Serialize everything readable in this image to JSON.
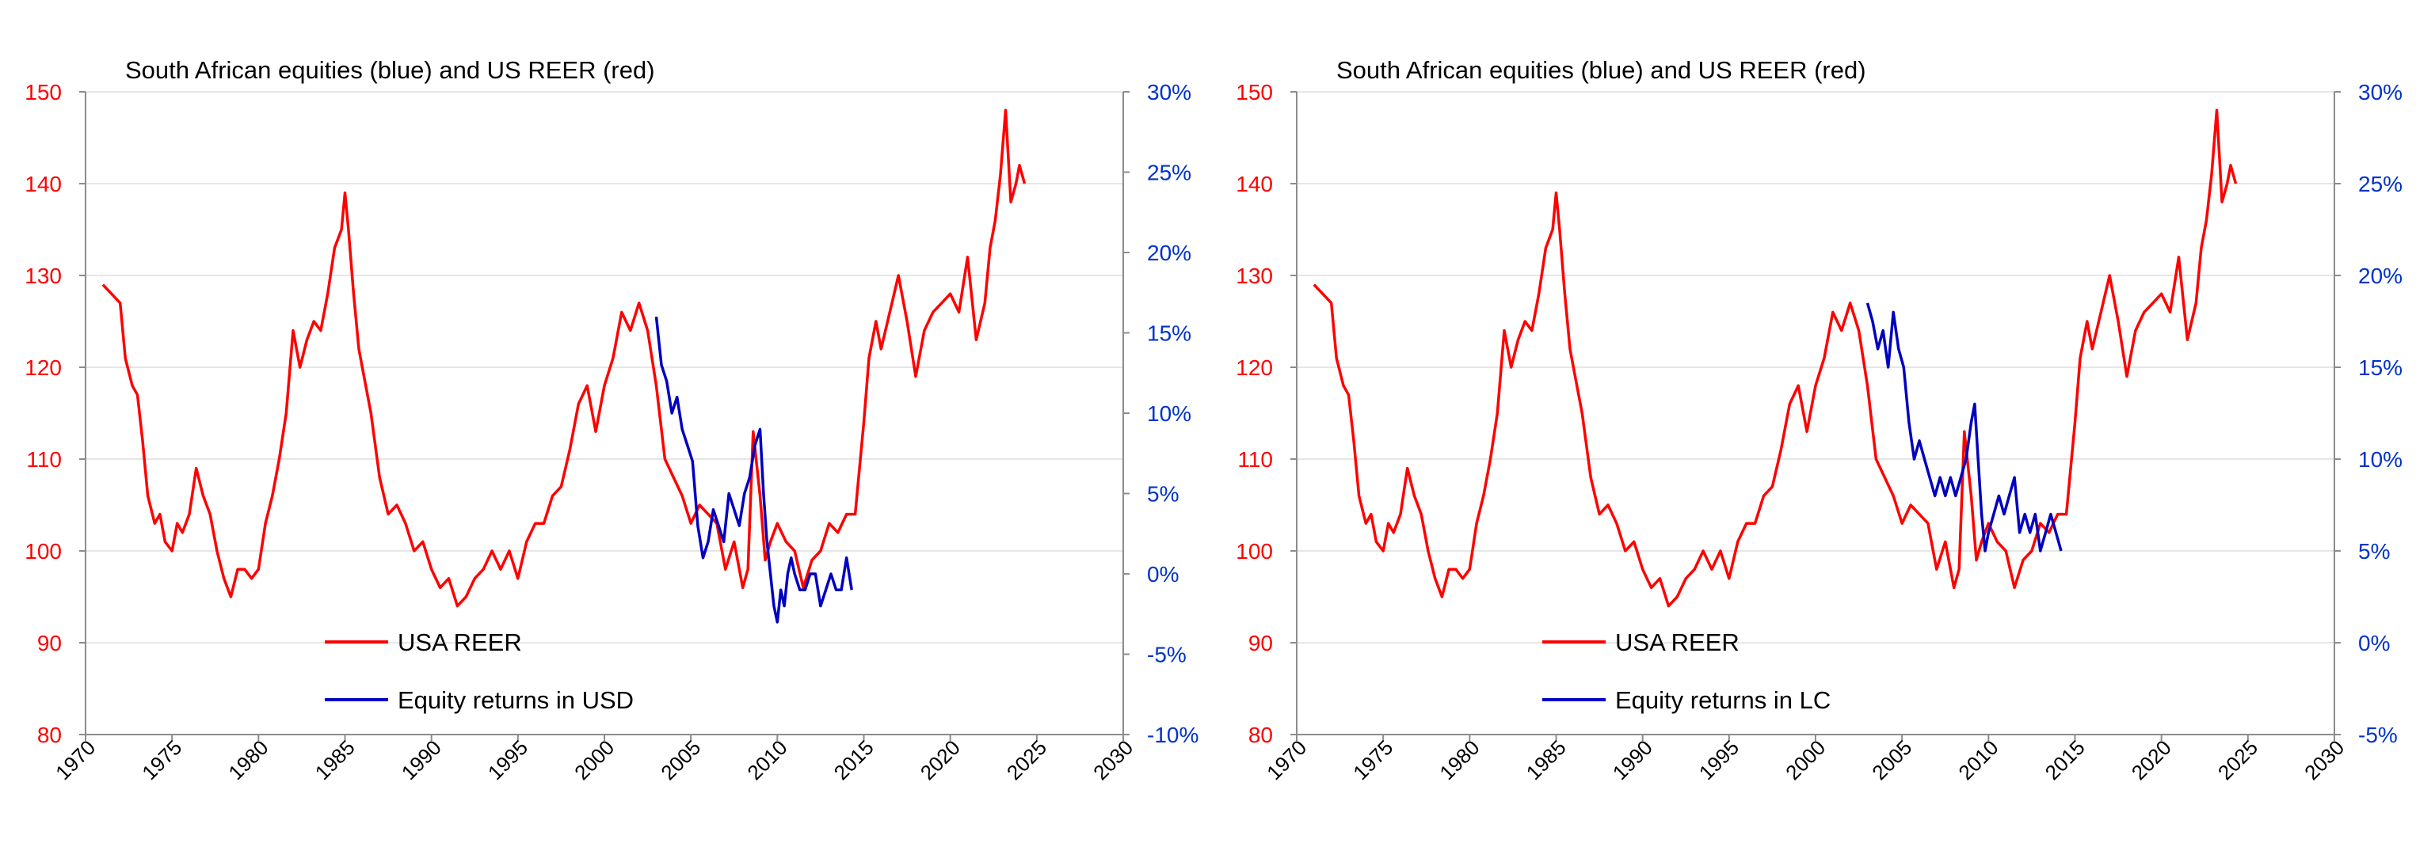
{
  "colors": {
    "reer": "#ff0000",
    "equity": "#0000c0",
    "axis": "#8c8c8c",
    "grid": "#e6e6e6",
    "text": "#000000",
    "left_tick": "#ff0000",
    "right_tick": "#0033cc"
  },
  "chart_data": [
    {
      "type": "line",
      "title": "South African equities (blue) and US REER (red)",
      "xlim": [
        1970,
        2030
      ],
      "x_ticks": [
        "1970",
        "1975",
        "1980",
        "1985",
        "1990",
        "1995",
        "2000",
        "2005",
        "2010",
        "2015",
        "2020",
        "2025",
        "2030"
      ],
      "ylim_left": [
        80,
        150
      ],
      "y_left_ticks": [
        "80",
        "90",
        "100",
        "110",
        "120",
        "130",
        "140",
        "150"
      ],
      "ylim_right": [
        -10,
        30
      ],
      "y_right_ticks": [
        "-10%",
        "-5%",
        "0%",
        "5%",
        "10%",
        "15%",
        "20%",
        "25%",
        "30%"
      ],
      "grid": true,
      "legend_position": "bottom-left",
      "series": [
        {
          "name": "USA REER",
          "axis": "left",
          "color": "#ff0000",
          "x": [
            1971.0,
            1971.5,
            1972.0,
            1972.3,
            1972.7,
            1973.0,
            1973.3,
            1973.6,
            1974.0,
            1974.3,
            1974.6,
            1975.0,
            1975.3,
            1975.6,
            1976.0,
            1976.4,
            1976.8,
            1977.2,
            1977.6,
            1978.0,
            1978.4,
            1978.8,
            1979.2,
            1979.6,
            1980.0,
            1980.4,
            1980.8,
            1981.2,
            1981.6,
            1982.0,
            1982.4,
            1982.8,
            1983.2,
            1983.6,
            1984.0,
            1984.4,
            1984.8,
            1985.0,
            1985.2,
            1985.5,
            1985.8,
            1986.1,
            1986.5,
            1987.0,
            1987.5,
            1988.0,
            1988.5,
            1989.0,
            1989.5,
            1990.0,
            1990.5,
            1991.0,
            1991.5,
            1992.0,
            1992.5,
            1993.0,
            1993.5,
            1994.0,
            1994.5,
            1995.0,
            1995.5,
            1996.0,
            1996.5,
            1997.0,
            1997.5,
            1998.0,
            1998.5,
            1999.0,
            1999.5,
            2000.0,
            2000.5,
            2001.0,
            2001.5,
            2002.0,
            2002.5,
            2003.0,
            2003.5,
            2004.0,
            2004.5,
            2005.0,
            2005.5,
            2006.0,
            2006.5,
            2007.0,
            2007.5,
            2008.0,
            2008.3,
            2008.6,
            2009.0,
            2009.3,
            2009.6,
            2010.0,
            2010.5,
            2011.0,
            2011.5,
            2012.0,
            2012.5,
            2013.0,
            2013.5,
            2014.0,
            2014.5,
            2015.0,
            2015.3,
            2015.7,
            2016.0,
            2016.5,
            2017.0,
            2017.5,
            2018.0,
            2018.5,
            2019.0,
            2019.5,
            2020.0,
            2020.5,
            2021.0,
            2021.5,
            2022.0,
            2022.3,
            2022.6,
            2022.9,
            2023.2,
            2023.5,
            2023.8,
            2024.0,
            2024.3
          ],
          "values": [
            129,
            128,
            127,
            121,
            118,
            117,
            112,
            106,
            103,
            104,
            101,
            100,
            103,
            102,
            104,
            109,
            106,
            104,
            100,
            97,
            95,
            98,
            98,
            97,
            98,
            103,
            106,
            110,
            115,
            124,
            120,
            123,
            125,
            124,
            128,
            133,
            135,
            139,
            135,
            128,
            122,
            119,
            115,
            108,
            104,
            105,
            103,
            100,
            101,
            98,
            96,
            97,
            94,
            95,
            97,
            98,
            100,
            98,
            100,
            97,
            101,
            103,
            103,
            106,
            107,
            111,
            116,
            118,
            113,
            118,
            121,
            126,
            124,
            127,
            124,
            118,
            110,
            108,
            106,
            103,
            105,
            104,
            103,
            98,
            101,
            96,
            98,
            113,
            106,
            99,
            101,
            103,
            101,
            100,
            96,
            99,
            100,
            103,
            102,
            104,
            104,
            114,
            121,
            125,
            122,
            126,
            130,
            125,
            119,
            124,
            126,
            127,
            128,
            126,
            132,
            123,
            127,
            133,
            136,
            141,
            148,
            138,
            140,
            142,
            140
          ]
        },
        {
          "name": "Equity returns in USD",
          "axis": "right",
          "color": "#0000c0",
          "x": [
            2003.0,
            2003.3,
            2003.6,
            2003.9,
            2004.2,
            2004.5,
            2004.8,
            2005.1,
            2005.4,
            2005.7,
            2006.0,
            2006.3,
            2006.6,
            2006.9,
            2007.2,
            2007.5,
            2007.8,
            2008.1,
            2008.4,
            2008.7,
            2009.0,
            2009.2,
            2009.4,
            2009.6,
            2009.8,
            2010.0,
            2010.2,
            2010.4,
            2010.6,
            2010.8,
            2011.0,
            2011.3,
            2011.6,
            2011.9,
            2012.2,
            2012.5,
            2012.8,
            2013.1,
            2013.4,
            2013.7,
            2014.0,
            2014.3
          ],
          "values": [
            16,
            13,
            12,
            10,
            11,
            9,
            8,
            7,
            3,
            1,
            2,
            4,
            3,
            2,
            5,
            4,
            3,
            5,
            6,
            8,
            9,
            5,
            2,
            0,
            -2,
            -3,
            -1,
            -2,
            0,
            1,
            0,
            -1,
            -1,
            0,
            0,
            -2,
            -1,
            0,
            -1,
            -1,
            1,
            -1
          ]
        }
      ]
    },
    {
      "type": "line",
      "title": "South African equities (blue) and US REER (red)",
      "xlim": [
        1970,
        2030
      ],
      "x_ticks": [
        "1970",
        "1975",
        "1980",
        "1985",
        "1990",
        "1995",
        "2000",
        "2005",
        "2010",
        "2015",
        "2020",
        "2025",
        "2030"
      ],
      "ylim_left": [
        80,
        150
      ],
      "y_left_ticks": [
        "80",
        "90",
        "100",
        "110",
        "120",
        "130",
        "140",
        "150"
      ],
      "ylim_right": [
        -5,
        30
      ],
      "y_right_ticks": [
        "-5%",
        "0%",
        "5%",
        "10%",
        "15%",
        "20%",
        "25%",
        "30%"
      ],
      "grid": true,
      "legend_position": "bottom-left",
      "series": [
        {
          "name": "USA REER",
          "axis": "left",
          "color": "#ff0000",
          "x": [
            1971.0,
            1971.5,
            1972.0,
            1972.3,
            1972.7,
            1973.0,
            1973.3,
            1973.6,
            1974.0,
            1974.3,
            1974.6,
            1975.0,
            1975.3,
            1975.6,
            1976.0,
            1976.4,
            1976.8,
            1977.2,
            1977.6,
            1978.0,
            1978.4,
            1978.8,
            1979.2,
            1979.6,
            1980.0,
            1980.4,
            1980.8,
            1981.2,
            1981.6,
            1982.0,
            1982.4,
            1982.8,
            1983.2,
            1983.6,
            1984.0,
            1984.4,
            1984.8,
            1985.0,
            1985.2,
            1985.5,
            1985.8,
            1986.1,
            1986.5,
            1987.0,
            1987.5,
            1988.0,
            1988.5,
            1989.0,
            1989.5,
            1990.0,
            1990.5,
            1991.0,
            1991.5,
            1992.0,
            1992.5,
            1993.0,
            1993.5,
            1994.0,
            1994.5,
            1995.0,
            1995.5,
            1996.0,
            1996.5,
            1997.0,
            1997.5,
            1998.0,
            1998.5,
            1999.0,
            1999.5,
            2000.0,
            2000.5,
            2001.0,
            2001.5,
            2002.0,
            2002.5,
            2003.0,
            2003.5,
            2004.0,
            2004.5,
            2005.0,
            2005.5,
            2006.0,
            2006.5,
            2007.0,
            2007.5,
            2008.0,
            2008.3,
            2008.6,
            2009.0,
            2009.3,
            2009.6,
            2010.0,
            2010.5,
            2011.0,
            2011.5,
            2012.0,
            2012.5,
            2013.0,
            2013.5,
            2014.0,
            2014.5,
            2015.0,
            2015.3,
            2015.7,
            2016.0,
            2016.5,
            2017.0,
            2017.5,
            2018.0,
            2018.5,
            2019.0,
            2019.5,
            2020.0,
            2020.5,
            2021.0,
            2021.5,
            2022.0,
            2022.3,
            2022.6,
            2022.9,
            2023.2,
            2023.5,
            2023.8,
            2024.0,
            2024.3
          ],
          "values": [
            129,
            128,
            127,
            121,
            118,
            117,
            112,
            106,
            103,
            104,
            101,
            100,
            103,
            102,
            104,
            109,
            106,
            104,
            100,
            97,
            95,
            98,
            98,
            97,
            98,
            103,
            106,
            110,
            115,
            124,
            120,
            123,
            125,
            124,
            128,
            133,
            135,
            139,
            135,
            128,
            122,
            119,
            115,
            108,
            104,
            105,
            103,
            100,
            101,
            98,
            96,
            97,
            94,
            95,
            97,
            98,
            100,
            98,
            100,
            97,
            101,
            103,
            103,
            106,
            107,
            111,
            116,
            118,
            113,
            118,
            121,
            126,
            124,
            127,
            124,
            118,
            110,
            108,
            106,
            103,
            105,
            104,
            103,
            98,
            101,
            96,
            98,
            113,
            106,
            99,
            101,
            103,
            101,
            100,
            96,
            99,
            100,
            103,
            102,
            104,
            104,
            114,
            121,
            125,
            122,
            126,
            130,
            125,
            119,
            124,
            126,
            127,
            128,
            126,
            132,
            123,
            127,
            133,
            136,
            141,
            148,
            138,
            140,
            142,
            140
          ]
        },
        {
          "name": "Equity returns in LC",
          "axis": "right",
          "color": "#0000c0",
          "x": [
            2003.0,
            2003.3,
            2003.6,
            2003.9,
            2004.2,
            2004.5,
            2004.8,
            2005.1,
            2005.4,
            2005.7,
            2006.0,
            2006.3,
            2006.6,
            2006.9,
            2007.2,
            2007.5,
            2007.8,
            2008.1,
            2008.4,
            2008.7,
            2009.0,
            2009.2,
            2009.4,
            2009.6,
            2009.8,
            2010.0,
            2010.3,
            2010.6,
            2010.9,
            2011.2,
            2011.5,
            2011.8,
            2012.1,
            2012.4,
            2012.7,
            2013.0,
            2013.3,
            2013.6,
            2013.9,
            2014.2
          ],
          "values": [
            18.5,
            17.5,
            16,
            17,
            15,
            18,
            16,
            15,
            12,
            10,
            11,
            10,
            9,
            8,
            9,
            8,
            9,
            8,
            9,
            10,
            12,
            13,
            10,
            7,
            5,
            6,
            7,
            8,
            7,
            8,
            9,
            6,
            7,
            6,
            7,
            5,
            6,
            7,
            6,
            5
          ]
        }
      ]
    }
  ]
}
